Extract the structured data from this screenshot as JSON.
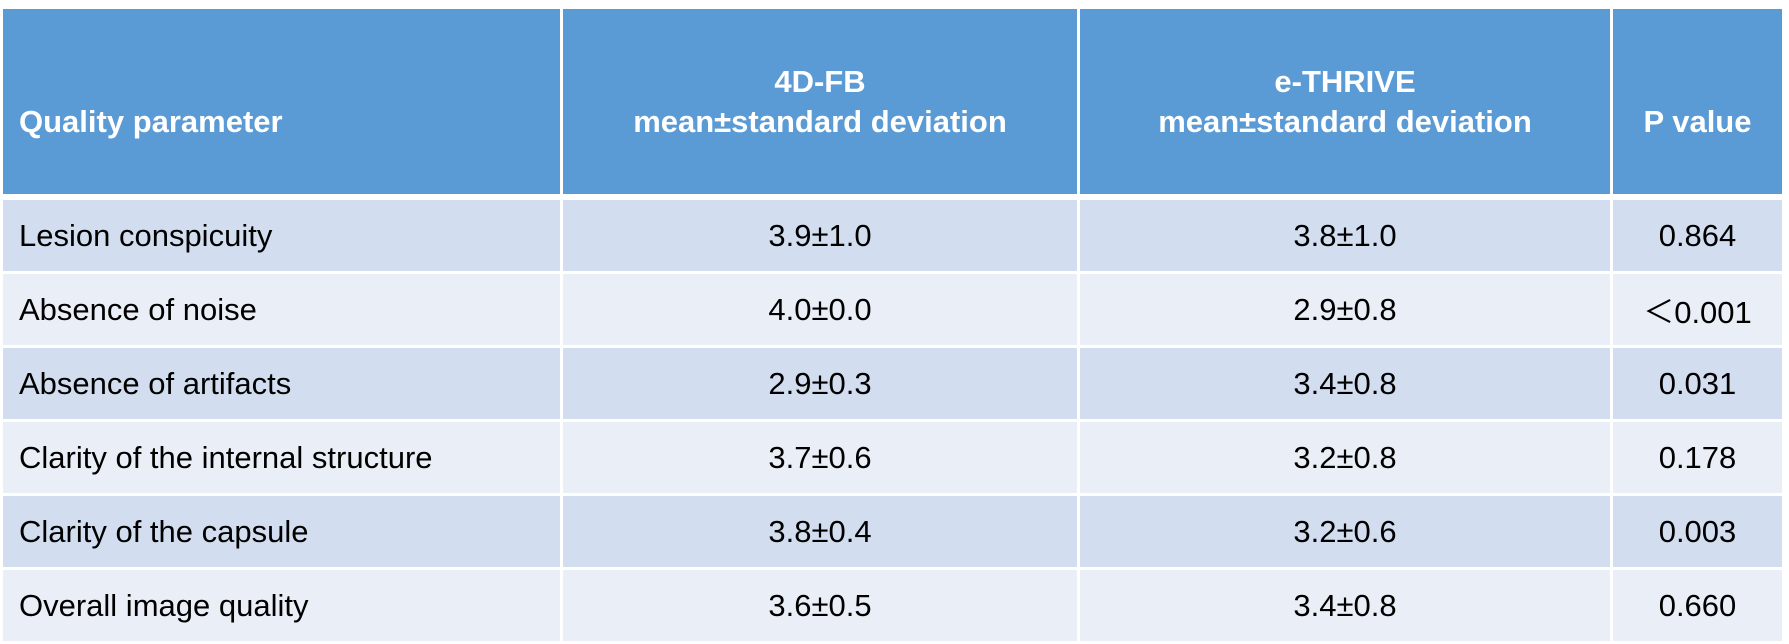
{
  "table": {
    "headers": [
      {
        "line1": "",
        "line2": "Quality parameter"
      },
      {
        "line1": "4D-FB",
        "line2": "mean±standard deviation"
      },
      {
        "line1": "e-THRIVE",
        "line2": "mean±standard deviation"
      },
      {
        "line1": "",
        "line2": "P value"
      }
    ],
    "rows": [
      [
        "Lesion conspicuity",
        "3.9±1.0",
        "3.8±1.0",
        "0.864"
      ],
      [
        "Absence of noise",
        "4.0±0.0",
        "2.9±0.8",
        "＜0.001"
      ],
      [
        "Absence of artifacts",
        "2.9±0.3",
        "3.4±0.8",
        "0.031"
      ],
      [
        "Clarity of the internal structure",
        "3.7±0.6",
        "3.2±0.8",
        "0.178"
      ],
      [
        "Clarity of the capsule",
        "3.8±0.4",
        "3.2±0.6",
        "0.003"
      ],
      [
        "Overall image quality",
        "3.6±0.5",
        "3.4±0.8",
        "0.660"
      ]
    ],
    "colors": {
      "header": "#5B9BD5",
      "row_odd": "#D2DEEF",
      "row_even": "#EAEFF7"
    }
  }
}
